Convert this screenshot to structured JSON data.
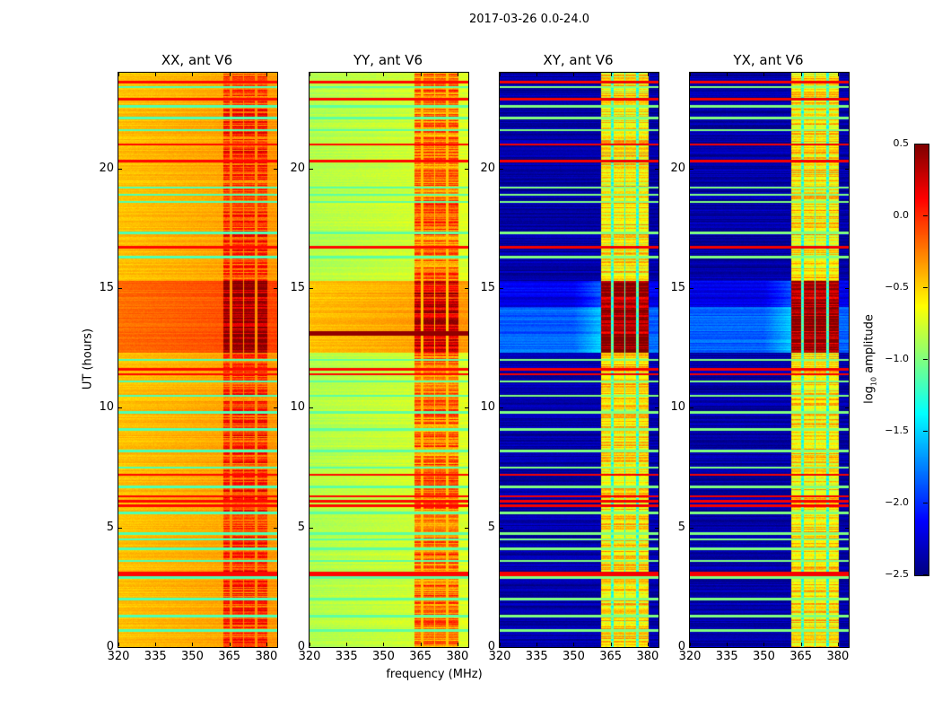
{
  "chart_data": {
    "type": "heatmap",
    "title": "2017-03-26 0.0-24.0",
    "xlabel": "frequency (MHz)",
    "ylabel": "UT (hours)",
    "xlim": [
      320,
      384.4
    ],
    "ylim": [
      0,
      24
    ],
    "xticks": [
      320,
      335,
      350,
      365,
      380
    ],
    "yticks": [
      0,
      5,
      10,
      15,
      20
    ],
    "colorbar": {
      "label_main": "log",
      "label_sub": "10",
      "label_rest": " amplitude",
      "vmin": -2.5,
      "vmax": 0.5,
      "colormap": "jet",
      "ticks": [
        "0.5",
        "0.0",
        "−0.5",
        "−1.0",
        "−1.5",
        "−2.0",
        "−2.5"
      ],
      "tick_values": [
        0.5,
        0.0,
        -0.5,
        -1.0,
        -1.5,
        -2.0,
        -2.5
      ]
    },
    "rfi_band_mhz": [
      361,
      380.5
    ],
    "band_gaps_mhz": [
      [
        365,
        366.2
      ],
      [
        370.4,
        371
      ],
      [
        375.4,
        376.3
      ]
    ],
    "storm_hours": [
      12.3,
      15.3
    ],
    "flagged_low_lines_hours": [
      0.7,
      1.3,
      2.0,
      2.9,
      3.6,
      4.1,
      4.5,
      4.75,
      5.6,
      6.7,
      7.5,
      8.2,
      9.1,
      9.8,
      10.5,
      11.1,
      12.0,
      16.3,
      17.3,
      18.6,
      18.9,
      19.2,
      21.6,
      22.1,
      22.6,
      23.4
    ],
    "flagged_high_lines_hours": [
      3.0,
      3.1,
      5.9,
      6.1,
      6.3,
      7.2,
      11.4,
      11.6,
      16.7,
      20.3,
      21.0,
      22.9,
      23.6
    ],
    "panels": [
      {
        "title": "XX, ant V6",
        "base": -0.45,
        "band": -0.05,
        "gap": -0.4,
        "storm_base": -0.2,
        "storm_band": 0.4,
        "low_line": -1.15,
        "high_line": 0.1
      },
      {
        "title": "YY, ant V6",
        "base": -0.85,
        "band": -0.2,
        "gap": -0.55,
        "storm_base": -0.45,
        "storm_band": 0.2,
        "low_line": -1.1,
        "high_line": 0.1
      },
      {
        "title": "XY, ant V6",
        "base": -2.38,
        "band": -0.55,
        "gap": -1.45,
        "storm_base": -1.85,
        "storm_band": 0.4,
        "low_line": -1.0,
        "high_line": 0.15
      },
      {
        "title": "YX, ant V6",
        "base": -2.38,
        "band": -0.55,
        "gap": -1.45,
        "storm_base": -1.85,
        "storm_band": 0.4,
        "low_line": -1.0,
        "high_line": 0.15
      }
    ]
  }
}
